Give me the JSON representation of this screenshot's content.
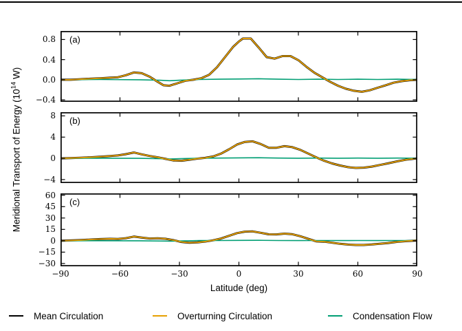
{
  "labels": {
    "xlabel": "Latitude (deg)",
    "ylabel_prefix": "Meridional Transport of Energy (10",
    "ylabel_sup": "14",
    "ylabel_suffix": " W)"
  },
  "legend": {
    "items": [
      {
        "label": "Mean Circulation",
        "color": "#000000"
      },
      {
        "label": "Overturning Circulation",
        "color": "#E69F00"
      },
      {
        "label": "Condensation Flow",
        "color": "#009E73"
      }
    ]
  },
  "chart_data": [
    {
      "type": "line",
      "panel_label": "(a)",
      "xlim": [
        -90,
        90
      ],
      "ylim": [
        -0.44,
        0.97
      ],
      "xticks": [
        -90,
        -60,
        -30,
        0,
        30,
        60,
        90
      ],
      "yticks": [
        0.8,
        0.4,
        0.0,
        -0.4
      ],
      "ytick_labels": [
        "0.8",
        "0.4",
        "0.0",
        "−0.4"
      ],
      "grid": false,
      "series": [
        {
          "name": "Mean Circulation",
          "color": "#000000",
          "width": 3,
          "x": [
            -90,
            -85,
            -80,
            -75,
            -70,
            -65,
            -61,
            -57,
            -53,
            -49,
            -45,
            -41,
            -38,
            -35,
            -31,
            -27,
            -23,
            -19,
            -15,
            -11,
            -7,
            -3,
            0,
            2,
            6,
            10,
            14,
            18,
            22,
            26,
            30,
            34,
            38,
            42,
            46,
            50,
            54,
            58,
            62,
            66,
            70,
            74,
            78,
            82,
            86,
            90
          ],
          "y": [
            0,
            0,
            0.01,
            0.02,
            0.03,
            0.04,
            0.05,
            0.09,
            0.145,
            0.13,
            0.06,
            -0.04,
            -0.11,
            -0.12,
            -0.07,
            -0.02,
            0,
            0.03,
            0.1,
            0.25,
            0.45,
            0.65,
            0.76,
            0.82,
            0.82,
            0.64,
            0.45,
            0.42,
            0.47,
            0.47,
            0.39,
            0.26,
            0.14,
            0.05,
            -0.04,
            -0.12,
            -0.18,
            -0.22,
            -0.24,
            -0.21,
            -0.16,
            -0.11,
            -0.06,
            -0.03,
            -0.01,
            0
          ]
        },
        {
          "name": "Condensation Flow",
          "color": "#009E73",
          "width": 1.6,
          "x": [
            -90,
            -70,
            -50,
            -40,
            -35,
            -30,
            -20,
            -10,
            0,
            10,
            20,
            30,
            40,
            50,
            60,
            70,
            80,
            90
          ],
          "y": [
            0,
            0.005,
            0,
            -0.01,
            -0.02,
            -0.01,
            0.005,
            0.01,
            0.015,
            0.02,
            0.01,
            0.005,
            0.01,
            0.005,
            0.01,
            0.005,
            0.01,
            0.005
          ]
        },
        {
          "name": "Overturning Circulation",
          "color": "#E69F00",
          "width": 1.9,
          "x": [
            -90,
            -85,
            -80,
            -75,
            -70,
            -65,
            -61,
            -57,
            -53,
            -49,
            -45,
            -41,
            -38,
            -35,
            -31,
            -27,
            -23,
            -19,
            -15,
            -11,
            -7,
            -3,
            0,
            2,
            6,
            10,
            14,
            18,
            22,
            26,
            30,
            34,
            38,
            42,
            46,
            50,
            54,
            58,
            62,
            66,
            70,
            74,
            78,
            82,
            86,
            90
          ],
          "y": [
            0,
            0,
            0.01,
            0.02,
            0.03,
            0.04,
            0.05,
            0.09,
            0.145,
            0.13,
            0.06,
            -0.04,
            -0.11,
            -0.12,
            -0.07,
            -0.02,
            0,
            0.03,
            0.1,
            0.25,
            0.45,
            0.65,
            0.76,
            0.82,
            0.82,
            0.64,
            0.45,
            0.42,
            0.47,
            0.47,
            0.39,
            0.26,
            0.14,
            0.05,
            -0.04,
            -0.12,
            -0.18,
            -0.22,
            -0.24,
            -0.21,
            -0.16,
            -0.11,
            -0.06,
            -0.03,
            -0.01,
            0
          ]
        }
      ]
    },
    {
      "type": "line",
      "panel_label": "(b)",
      "xlim": [
        -90,
        90
      ],
      "ylim": [
        -4.65,
        8.7
      ],
      "xticks": [
        -90,
        -60,
        -30,
        0,
        30,
        60,
        90
      ],
      "yticks": [
        8,
        4,
        0,
        -4
      ],
      "ytick_labels": [
        "8",
        "4",
        "0",
        "−4"
      ],
      "grid": false,
      "series": [
        {
          "name": "Mean Circulation",
          "color": "#000000",
          "width": 3,
          "x": [
            -90,
            -85,
            -80,
            -75,
            -70,
            -65,
            -61,
            -57,
            -53,
            -49,
            -45,
            -41,
            -37,
            -33,
            -29,
            -25,
            -21,
            -17,
            -13,
            -9,
            -5,
            -1,
            3,
            7,
            11,
            15,
            19,
            23,
            27,
            31,
            35,
            39,
            43,
            47,
            51,
            55,
            59,
            63,
            67,
            71,
            75,
            80,
            85,
            90
          ],
          "y": [
            0,
            0.05,
            0.12,
            0.2,
            0.3,
            0.45,
            0.55,
            0.8,
            1.1,
            0.75,
            0.45,
            0.2,
            -0.1,
            -0.4,
            -0.45,
            -0.25,
            -0.05,
            0.1,
            0.35,
            0.9,
            1.7,
            2.6,
            3.1,
            3.2,
            2.7,
            2.0,
            2.0,
            2.3,
            2.1,
            1.6,
            0.9,
            0.2,
            -0.45,
            -0.95,
            -1.35,
            -1.65,
            -1.8,
            -1.75,
            -1.55,
            -1.25,
            -0.95,
            -0.55,
            -0.2,
            0
          ]
        },
        {
          "name": "Condensation Flow",
          "color": "#009E73",
          "width": 1.6,
          "x": [
            -90,
            -70,
            -50,
            -40,
            -35,
            -30,
            -20,
            -10,
            0,
            10,
            20,
            30,
            40,
            50,
            60,
            70,
            80,
            90
          ],
          "y": [
            0,
            0.03,
            0,
            -0.06,
            -0.12,
            -0.06,
            0.03,
            0.06,
            0.1,
            0.12,
            0.06,
            0.03,
            0.06,
            0.03,
            0.06,
            0.03,
            0.06,
            0.03
          ]
        },
        {
          "name": "Overturning Circulation",
          "color": "#E69F00",
          "width": 1.9,
          "x": [
            -90,
            -85,
            -80,
            -75,
            -70,
            -65,
            -61,
            -57,
            -53,
            -49,
            -45,
            -41,
            -37,
            -33,
            -29,
            -25,
            -21,
            -17,
            -13,
            -9,
            -5,
            -1,
            3,
            7,
            11,
            15,
            19,
            23,
            27,
            31,
            35,
            39,
            43,
            47,
            51,
            55,
            59,
            63,
            67,
            71,
            75,
            80,
            85,
            90
          ],
          "y": [
            0,
            0.05,
            0.12,
            0.2,
            0.3,
            0.45,
            0.55,
            0.8,
            1.1,
            0.75,
            0.45,
            0.2,
            -0.1,
            -0.4,
            -0.45,
            -0.25,
            -0.05,
            0.1,
            0.35,
            0.9,
            1.7,
            2.6,
            3.1,
            3.2,
            2.7,
            2.0,
            2.0,
            2.3,
            2.1,
            1.6,
            0.9,
            0.2,
            -0.45,
            -0.95,
            -1.35,
            -1.65,
            -1.8,
            -1.75,
            -1.55,
            -1.25,
            -0.95,
            -0.55,
            -0.2,
            0
          ]
        }
      ]
    },
    {
      "type": "line",
      "panel_label": "(c)",
      "xlim": [
        -90,
        90
      ],
      "ylim": [
        -33.7,
        62.5
      ],
      "xticks": [
        -90,
        -60,
        -30,
        0,
        30,
        60,
        90
      ],
      "xtick_labels": [
        "−90",
        "−60",
        "−30",
        "0",
        "30",
        "60",
        "90"
      ],
      "yticks": [
        60,
        45,
        30,
        15,
        0,
        -15,
        -30
      ],
      "ytick_labels": [
        "60",
        "45",
        "30",
        "15",
        "0",
        "−15",
        "−30"
      ],
      "grid": false,
      "series": [
        {
          "name": "Mean Circulation",
          "color": "#000000",
          "width": 3,
          "x": [
            -90,
            -85,
            -80,
            -75,
            -70,
            -65,
            -61,
            -57,
            -53,
            -49,
            -45,
            -41,
            -37,
            -33,
            -29,
            -25,
            -21,
            -17,
            -13,
            -9,
            -5,
            -1,
            3,
            7,
            11,
            15,
            19,
            23,
            27,
            31,
            35,
            39,
            43,
            47,
            51,
            55,
            59,
            63,
            67,
            71,
            75,
            80,
            85,
            90
          ],
          "y": [
            0,
            0.4,
            0.9,
            1.6,
            2.2,
            2.6,
            2.4,
            3.4,
            5.5,
            4.2,
            3.0,
            3.3,
            2.6,
            0.8,
            -1.6,
            -2.6,
            -2.2,
            -1.0,
            0.6,
            3.0,
            6.5,
            10.0,
            12.0,
            12.3,
            10.5,
            8.5,
            8.4,
            9.4,
            8.6,
            6.0,
            2.5,
            -0.8,
            -1.2,
            -2.6,
            -4.0,
            -5.0,
            -5.6,
            -5.6,
            -4.9,
            -4.0,
            -3.0,
            -1.4,
            -0.3,
            0.3
          ]
        },
        {
          "name": "Condensation Flow",
          "color": "#009E73",
          "width": 1.6,
          "x": [
            -90,
            -70,
            -50,
            -40,
            -35,
            -30,
            -20,
            -10,
            0,
            10,
            20,
            30,
            40,
            50,
            60,
            70,
            80,
            90
          ],
          "y": [
            0,
            0.1,
            0,
            -0.3,
            -0.6,
            -0.3,
            0.2,
            0.3,
            0.5,
            0.6,
            0.3,
            0.2,
            0.3,
            0.2,
            0.3,
            0.2,
            0.3,
            0.2
          ]
        },
        {
          "name": "Overturning Circulation",
          "color": "#E69F00",
          "width": 1.9,
          "x": [
            -90,
            -85,
            -80,
            -75,
            -70,
            -65,
            -61,
            -57,
            -53,
            -49,
            -45,
            -41,
            -37,
            -33,
            -29,
            -25,
            -21,
            -17,
            -13,
            -9,
            -5,
            -1,
            3,
            7,
            11,
            15,
            19,
            23,
            27,
            31,
            35,
            39,
            43,
            47,
            51,
            55,
            59,
            63,
            67,
            71,
            75,
            80,
            85,
            90
          ],
          "y": [
            0,
            0.4,
            0.9,
            1.6,
            2.2,
            2.6,
            2.4,
            3.4,
            5.5,
            4.2,
            3.0,
            3.3,
            2.6,
            0.8,
            -1.6,
            -2.6,
            -2.2,
            -1.0,
            0.6,
            3.0,
            6.5,
            10.0,
            12.0,
            12.3,
            10.5,
            8.5,
            8.4,
            9.4,
            8.6,
            6.0,
            2.5,
            -0.8,
            -1.2,
            -2.6,
            -4.0,
            -5.0,
            -5.6,
            -5.6,
            -4.9,
            -4.0,
            -3.0,
            -1.4,
            -0.3,
            0.3
          ]
        }
      ]
    }
  ]
}
